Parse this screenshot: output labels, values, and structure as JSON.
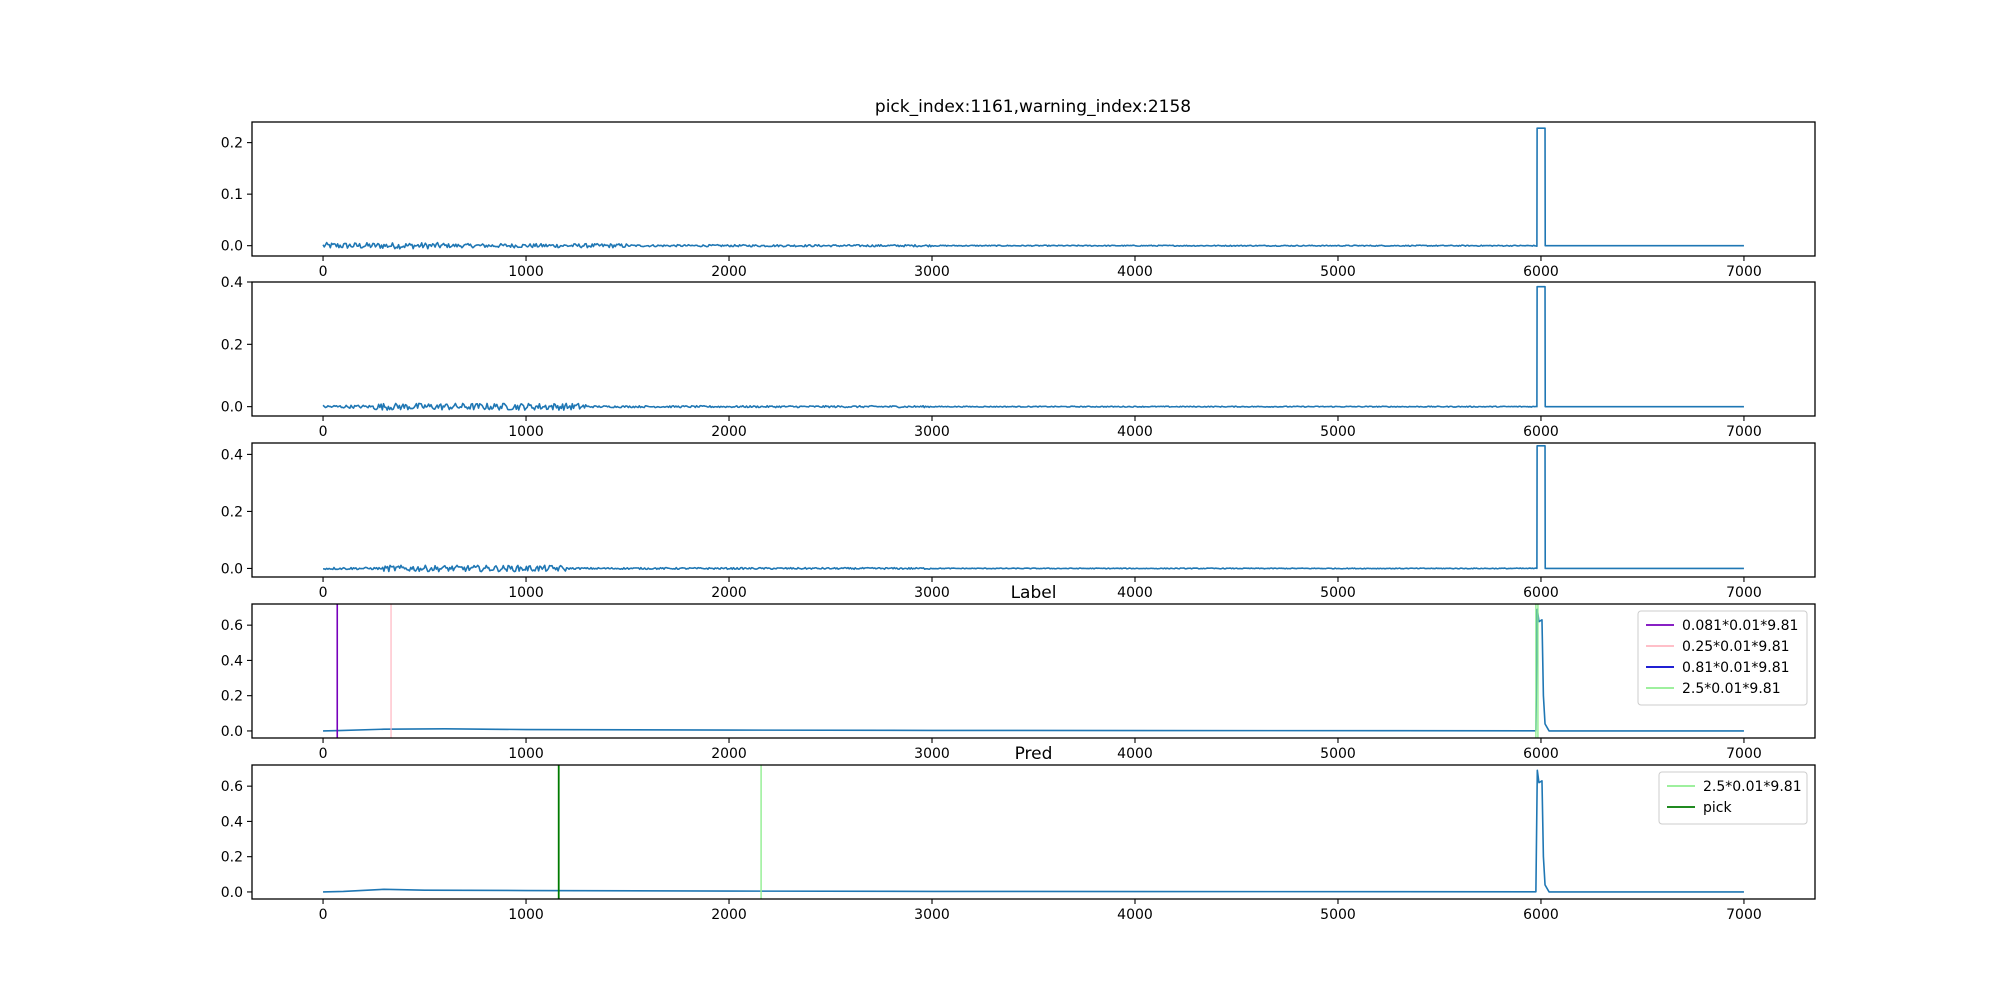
{
  "figure_title": "pick_index:1161,warning_index:2158",
  "colors": {
    "signal": "#1f77b4",
    "purple": "#7700bb",
    "pink": "#ffb6c1",
    "blue": "#0000cd",
    "lightgreen": "#90ee90",
    "green": "#007a00"
  },
  "chart_data": [
    {
      "type": "line",
      "title": "",
      "xlim": [
        -350,
        7350
      ],
      "ylim": [
        -0.02,
        0.24
      ],
      "xticks": [
        0,
        1000,
        2000,
        3000,
        4000,
        5000,
        6000,
        7000
      ],
      "yticks": [
        0.0,
        0.1,
        0.2
      ],
      "ytick_labels": [
        "0.0",
        "0.1",
        "0.2"
      ],
      "series": [
        {
          "color": "signal",
          "noise_segments": [
            [
              0,
              600,
              0.006
            ],
            [
              600,
              1500,
              0.004
            ],
            [
              1500,
              3000,
              0.002
            ],
            [
              3000,
              5980,
              0.001
            ]
          ],
          "points": [
            [
              5980,
              -0.001
            ],
            [
              5981,
              0.228
            ],
            [
              6020,
              0.228
            ],
            [
              6021,
              0.0
            ],
            [
              7000,
              0.0
            ]
          ]
        }
      ],
      "vlines": [],
      "legend": []
    },
    {
      "type": "line",
      "title": "",
      "xlim": [
        -350,
        7350
      ],
      "ylim": [
        -0.03,
        0.4
      ],
      "xticks": [
        0,
        1000,
        2000,
        3000,
        4000,
        5000,
        6000,
        7000
      ],
      "yticks": [
        0.0,
        0.2,
        0.4
      ],
      "ytick_labels": [
        "0.0",
        "0.2",
        "0.4"
      ],
      "series": [
        {
          "color": "signal",
          "noise_segments": [
            [
              0,
              250,
              0.005
            ],
            [
              250,
              1300,
              0.011
            ],
            [
              1300,
              3000,
              0.003
            ],
            [
              3000,
              5980,
              0.0015
            ]
          ],
          "points": [
            [
              5980,
              0.0
            ],
            [
              5981,
              0.385
            ],
            [
              6020,
              0.385
            ],
            [
              6021,
              0.0
            ],
            [
              7000,
              0.0
            ]
          ]
        }
      ],
      "vlines": [],
      "legend": []
    },
    {
      "type": "line",
      "title": "",
      "xlim": [
        -350,
        7350
      ],
      "ylim": [
        -0.03,
        0.44
      ],
      "xticks": [
        0,
        1000,
        2000,
        3000,
        4000,
        5000,
        6000,
        7000
      ],
      "yticks": [
        0.0,
        0.2,
        0.4
      ],
      "ytick_labels": [
        "0.0",
        "0.2",
        "0.4"
      ],
      "series": [
        {
          "color": "signal",
          "noise_segments": [
            [
              0,
              300,
              0.004
            ],
            [
              300,
              1200,
              0.011
            ],
            [
              1200,
              3000,
              0.003
            ],
            [
              3000,
              5980,
              0.0015
            ]
          ],
          "points": [
            [
              5980,
              0.0
            ],
            [
              5981,
              0.43
            ],
            [
              6020,
              0.43
            ],
            [
              6021,
              0.0
            ],
            [
              7000,
              0.0
            ]
          ]
        }
      ],
      "vlines": [],
      "legend": []
    },
    {
      "type": "line",
      "title": "Label",
      "xlim": [
        -350,
        7350
      ],
      "ylim": [
        -0.04,
        0.72
      ],
      "xticks": [
        0,
        1000,
        2000,
        3000,
        4000,
        5000,
        6000,
        7000
      ],
      "yticks": [
        0.0,
        0.2,
        0.4,
        0.6
      ],
      "ytick_labels": [
        "0.0",
        "0.2",
        "0.4",
        "0.6"
      ],
      "series": [
        {
          "color": "signal",
          "points": [
            [
              0,
              0.0
            ],
            [
              80,
              0.002
            ],
            [
              300,
              0.01
            ],
            [
              600,
              0.012
            ],
            [
              1000,
              0.008
            ],
            [
              2000,
              0.005
            ],
            [
              3000,
              0.003
            ],
            [
              5975,
              0.001
            ],
            [
              5982,
              0.69
            ],
            [
              5990,
              0.62
            ],
            [
              6005,
              0.63
            ],
            [
              6012,
              0.2
            ],
            [
              6020,
              0.04
            ],
            [
              6040,
              0.0
            ],
            [
              7000,
              0.0
            ]
          ]
        }
      ],
      "vlines": [
        {
          "x": 70,
          "color": "purple",
          "width": 1.6
        },
        {
          "x": 335,
          "color": "pink",
          "width": 1.2
        },
        {
          "x": 5975,
          "color": "lightgreen",
          "width": 1.4
        },
        {
          "x": 5985,
          "color": "lightgreen",
          "width": 1.4
        }
      ],
      "legend": [
        {
          "label": "0.081*0.01*9.81",
          "color": "purple"
        },
        {
          "label": "0.25*0.01*9.81",
          "color": "pink"
        },
        {
          "label": "0.81*0.01*9.81",
          "color": "blue"
        },
        {
          "label": "2.5*0.01*9.81",
          "color": "lightgreen"
        }
      ]
    },
    {
      "type": "line",
      "title": "Pred",
      "xlim": [
        -350,
        7350
      ],
      "ylim": [
        -0.04,
        0.72
      ],
      "xticks": [
        0,
        1000,
        2000,
        3000,
        4000,
        5000,
        6000,
        7000
      ],
      "yticks": [
        0.0,
        0.2,
        0.4,
        0.6
      ],
      "ytick_labels": [
        "0.0",
        "0.2",
        "0.4",
        "0.6"
      ],
      "series": [
        {
          "color": "signal",
          "points": [
            [
              0,
              0.0
            ],
            [
              100,
              0.003
            ],
            [
              300,
              0.015
            ],
            [
              500,
              0.01
            ],
            [
              1000,
              0.008
            ],
            [
              2000,
              0.005
            ],
            [
              3000,
              0.003
            ],
            [
              5975,
              0.001
            ],
            [
              5982,
              0.69
            ],
            [
              5990,
              0.62
            ],
            [
              6005,
              0.63
            ],
            [
              6012,
              0.2
            ],
            [
              6020,
              0.04
            ],
            [
              6040,
              0.0
            ],
            [
              7000,
              0.0
            ]
          ]
        }
      ],
      "vlines": [
        {
          "x": 1161,
          "color": "green",
          "width": 1.8
        },
        {
          "x": 2158,
          "color": "lightgreen",
          "width": 1.4
        }
      ],
      "legend": [
        {
          "label": "2.5*0.01*9.81",
          "color": "lightgreen"
        },
        {
          "label": "pick",
          "color": "green"
        }
      ]
    }
  ]
}
